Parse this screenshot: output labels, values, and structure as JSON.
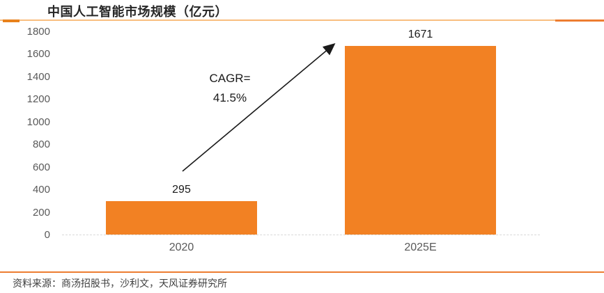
{
  "header": {
    "title": "中国人工智能市场规模（亿元）"
  },
  "chart_data": {
    "type": "bar",
    "title": "中国人工智能市场规模（亿元）",
    "categories": [
      "2020",
      "2025E"
    ],
    "values": [
      295,
      1671
    ],
    "data_labels": [
      "295",
      "1671"
    ],
    "xlabel": "",
    "ylabel": "",
    "ylim": [
      0,
      1800
    ],
    "ytick_step": 200,
    "ytick_labels": [
      "0",
      "200",
      "400",
      "600",
      "800",
      "1000",
      "1200",
      "1400",
      "1600",
      "1800"
    ],
    "grid": false,
    "legend": "none",
    "bar_color": "#F28123",
    "annotation": {
      "line1": "CAGR=",
      "line2": "41.5%",
      "arrow_from_category": "2020",
      "arrow_to_category": "2025E"
    }
  },
  "footer": {
    "source": "资料来源：商汤招股书，沙利文，天风证券研究所"
  },
  "colors": {
    "accent_orange": "#ED7D31",
    "light_orange_rule": "#F9BE7F",
    "bar_orange": "#F28123",
    "axis_text_gray": "#595959",
    "baseline_gray": "#D9D9D9",
    "text_dark": "#262626"
  }
}
